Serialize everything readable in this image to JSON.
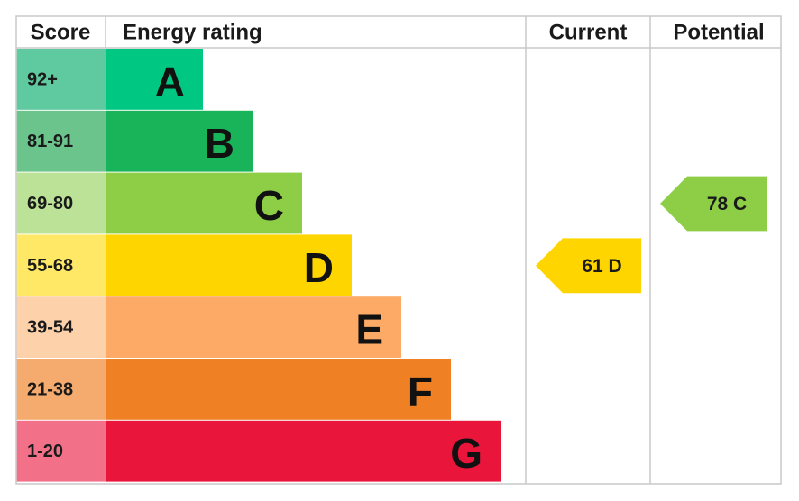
{
  "header": {
    "score": "Score",
    "energy_rating": "Energy rating",
    "current": "Current",
    "potential": "Potential"
  },
  "bands": [
    {
      "score": "92+",
      "rating": "A",
      "color": "#00c781",
      "score_color": "#5fcaa0"
    },
    {
      "score": "81-91",
      "rating": "B",
      "color": "#19b459",
      "score_color": "#6bc48b"
    },
    {
      "score": "69-80",
      "rating": "C",
      "color": "#8dce46",
      "score_color": "#bbe296"
    },
    {
      "score": "55-68",
      "rating": "D",
      "color": "#ffd500",
      "score_color": "#ffe866"
    },
    {
      "score": "39-54",
      "rating": "E",
      "color": "#fcaa65",
      "score_color": "#fdd2ab"
    },
    {
      "score": "21-38",
      "rating": "F",
      "color": "#ef8023",
      "score_color": "#f5aa6e"
    },
    {
      "score": "1-20",
      "rating": "G",
      "color": "#e9153b",
      "score_color": "#f27189"
    }
  ],
  "current": {
    "value": 61,
    "rating": "D"
  },
  "potential": {
    "value": 78,
    "rating": "C"
  }
}
